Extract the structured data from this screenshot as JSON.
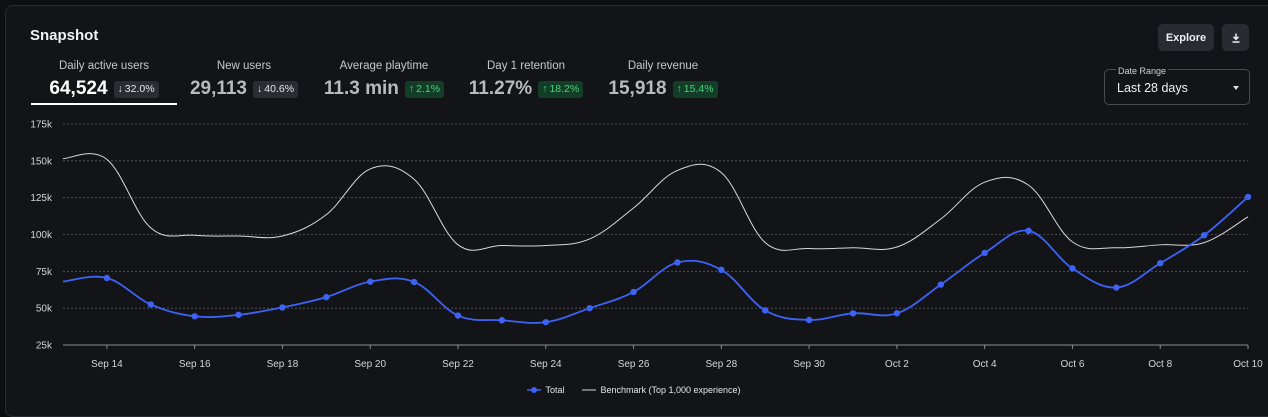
{
  "card": {
    "title": "Snapshot"
  },
  "toolbar": {
    "explore_label": "Explore"
  },
  "metrics": [
    {
      "label": "Daily active users",
      "value": "64,524",
      "change": "32.0%",
      "direction": "down",
      "active": true
    },
    {
      "label": "New users",
      "value": "29,113",
      "change": "40.6%",
      "direction": "down",
      "active": false
    },
    {
      "label": "Average playtime",
      "value": "11.3 min",
      "change": "2.1%",
      "direction": "up",
      "active": false
    },
    {
      "label": "Day 1 retention",
      "value": "11.27%",
      "change": "18.2%",
      "direction": "up",
      "active": false
    },
    {
      "label": "Daily revenue",
      "value": "15,918",
      "change": "15.4%",
      "direction": "up",
      "active": false
    }
  ],
  "date_range": {
    "label": "Date Range",
    "value": "Last 28 days"
  },
  "colors": {
    "total": "#3d63f5",
    "benchmark": "#d9d9dc",
    "up": "#4fd17d",
    "grid": "#5a5b60"
  },
  "chart_data": {
    "type": "line",
    "title": "",
    "xlabel": "",
    "ylabel": "",
    "ylim": [
      25000,
      175000
    ],
    "yticks": [
      25000,
      50000,
      75000,
      100000,
      125000,
      150000,
      175000
    ],
    "ytick_labels": [
      "25k",
      "50k",
      "75k",
      "100k",
      "125k",
      "150k",
      "175k"
    ],
    "x": [
      "Sep 13",
      "Sep 14",
      "Sep 15",
      "Sep 16",
      "Sep 17",
      "Sep 18",
      "Sep 19",
      "Sep 20",
      "Sep 21",
      "Sep 22",
      "Sep 23",
      "Sep 24",
      "Sep 25",
      "Sep 26",
      "Sep 27",
      "Sep 28",
      "Sep 29",
      "Sep 30",
      "Oct 1",
      "Oct 2",
      "Oct 3",
      "Oct 4",
      "Oct 5",
      "Oct 6",
      "Oct 7",
      "Oct 8",
      "Oct 9",
      "Oct 10"
    ],
    "xtick_labels": [
      "Sep 14",
      "Sep 16",
      "Sep 18",
      "Sep 20",
      "Sep 22",
      "Sep 24",
      "Sep 26",
      "Sep 28",
      "Sep 30",
      "Oct 2",
      "Oct 4",
      "Oct 6",
      "Oct 8",
      "Oct 10"
    ],
    "series": [
      {
        "name": "Total",
        "markers": true,
        "values": [
          68000,
          70500,
          52500,
          44500,
          45500,
          50500,
          57500,
          68000,
          67800,
          45000,
          41800,
          40500,
          50000,
          61000,
          81000,
          76000,
          48500,
          42000,
          46500,
          46500,
          66000,
          87500,
          102500,
          77000,
          64000,
          80500,
          99500,
          125500
        ]
      },
      {
        "name": "Benchmark (Top 1,000 experience)",
        "markers": false,
        "values": [
          151500,
          151000,
          104500,
          99500,
          99000,
          99000,
          113500,
          144500,
          137500,
          93000,
          92500,
          92500,
          97000,
          118000,
          143500,
          142000,
          94500,
          90500,
          91000,
          91500,
          110500,
          135500,
          133500,
          95000,
          91000,
          93000,
          94500,
          112000
        ]
      }
    ],
    "legend": [
      "Total",
      "Benchmark (Top 1,000 experience)"
    ],
    "legend_position": "bottom-center",
    "grid": true
  }
}
